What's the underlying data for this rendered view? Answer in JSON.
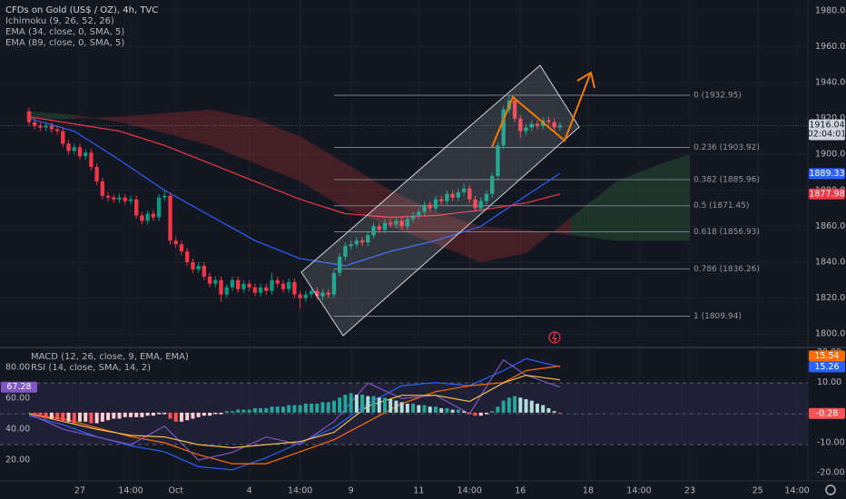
{
  "chart_data": [
    {
      "type": "candlestick",
      "title": "CFDs on Gold (US$ / OZ), 4h, TVC",
      "open": [
        1924,
        1918,
        1916,
        1915,
        1916,
        1914,
        1913,
        1906,
        1902,
        1904,
        1899,
        1901,
        1893,
        1885,
        1877,
        1876,
        1875,
        1876,
        1874,
        1875,
        1866,
        1863,
        1867,
        1865,
        1876,
        1877,
        1852,
        1850,
        1846,
        1840,
        1836,
        1838,
        1832,
        1828,
        1830,
        1822,
        1826,
        1830,
        1825,
        1828,
        1826,
        1823,
        1826,
        1824,
        1830,
        1828,
        1825,
        1829,
        1822,
        1820,
        1822,
        1824,
        1821,
        1823,
        1822,
        1834,
        1843,
        1849,
        1850,
        1852,
        1851,
        1855,
        1860,
        1858,
        1862,
        1861,
        1863,
        1860,
        1864,
        1866,
        1868,
        1872,
        1870,
        1875,
        1874,
        1878,
        1876,
        1879,
        1881,
        1875,
        1870,
        1874,
        1878,
        1888,
        1905,
        1925,
        1930,
        1920,
        1913,
        1915,
        1917,
        1916,
        1919,
        1918,
        1915
      ],
      "high": [
        1926,
        1920,
        1918,
        1918,
        1918,
        1916,
        1915,
        1908,
        1906,
        1906,
        1903,
        1903,
        1895,
        1887,
        1879,
        1878,
        1878,
        1878,
        1877,
        1877,
        1868,
        1869,
        1869,
        1878,
        1880,
        1879,
        1854,
        1852,
        1848,
        1842,
        1840,
        1840,
        1834,
        1832,
        1832,
        1828,
        1832,
        1832,
        1830,
        1830,
        1828,
        1828,
        1828,
        1834,
        1832,
        1830,
        1831,
        1831,
        1824,
        1824,
        1826,
        1826,
        1825,
        1825,
        1836,
        1845,
        1851,
        1852,
        1854,
        1854,
        1857,
        1862,
        1862,
        1864,
        1864,
        1865,
        1865,
        1866,
        1868,
        1870,
        1874,
        1874,
        1877,
        1877,
        1880,
        1880,
        1881,
        1884,
        1883,
        1877,
        1876,
        1880,
        1890,
        1907,
        1927,
        1933,
        1932,
        1922,
        1917,
        1919,
        1919,
        1921,
        1921,
        1920,
        1918
      ],
      "low": [
        1916,
        1914,
        1913,
        1913,
        1912,
        1911,
        1904,
        1900,
        1900,
        1897,
        1897,
        1891,
        1883,
        1875,
        1874,
        1873,
        1873,
        1872,
        1872,
        1864,
        1861,
        1861,
        1863,
        1863,
        1874,
        1850,
        1848,
        1844,
        1838,
        1834,
        1834,
        1830,
        1826,
        1826,
        1818,
        1820,
        1824,
        1823,
        1823,
        1824,
        1821,
        1821,
        1822,
        1822,
        1826,
        1823,
        1823,
        1820,
        1814,
        1818,
        1820,
        1819,
        1819,
        1820,
        1820,
        1832,
        1841,
        1847,
        1848,
        1849,
        1849,
        1853,
        1856,
        1856,
        1859,
        1859,
        1858,
        1858,
        1862,
        1864,
        1866,
        1868,
        1868,
        1872,
        1872,
        1874,
        1874,
        1877,
        1873,
        1868,
        1868,
        1872,
        1876,
        1886,
        1903,
        1923,
        1918,
        1909,
        1911,
        1913,
        1914,
        1914,
        1916,
        1913,
        1913
      ],
      "close": [
        1918,
        1916,
        1915,
        1916,
        1914,
        1913,
        1906,
        1902,
        1904,
        1899,
        1901,
        1893,
        1885,
        1877,
        1876,
        1875,
        1876,
        1874,
        1875,
        1866,
        1863,
        1867,
        1865,
        1876,
        1877,
        1852,
        1850,
        1846,
        1840,
        1836,
        1838,
        1832,
        1828,
        1830,
        1822,
        1826,
        1830,
        1825,
        1828,
        1826,
        1823,
        1826,
        1824,
        1830,
        1828,
        1825,
        1829,
        1822,
        1820,
        1822,
        1824,
        1821,
        1823,
        1822,
        1834,
        1843,
        1849,
        1850,
        1852,
        1851,
        1855,
        1860,
        1858,
        1862,
        1861,
        1863,
        1860,
        1864,
        1866,
        1868,
        1872,
        1870,
        1875,
        1874,
        1878,
        1876,
        1879,
        1881,
        1875,
        1870,
        1874,
        1878,
        1888,
        1905,
        1925,
        1930,
        1920,
        1913,
        1915,
        1917,
        1916,
        1919,
        1918,
        1915,
        1916.04
      ],
      "up_color": "#089981",
      "down_color": "#f23645",
      "last_countdown": "02:04:01",
      "xlim": [
        -5.14,
        137.9
      ],
      "xticks": [
        {
          "value": 9,
          "label": "27"
        },
        {
          "value": 18,
          "label": "14:00"
        },
        {
          "value": 26,
          "label": "Oct"
        },
        {
          "value": 39,
          "label": "4"
        },
        {
          "value": 48,
          "label": "14:00"
        },
        {
          "value": 57,
          "label": "9"
        },
        {
          "value": 69,
          "label": "11"
        },
        {
          "value": 78,
          "label": "14:00"
        },
        {
          "value": 87,
          "label": "16"
        },
        {
          "value": 99,
          "label": "18"
        },
        {
          "value": 108,
          "label": "14:00"
        },
        {
          "value": 117,
          "label": "23"
        },
        {
          "value": 129,
          "label": "25"
        },
        {
          "value": 136,
          "label": "14:00"
        }
      ],
      "ylim": [
        1793,
        1986
      ],
      "yticks": [
        {
          "value": 1980,
          "label": "1980.00"
        },
        {
          "value": 1960,
          "label": "1960.00"
        },
        {
          "value": 1940,
          "label": "1940.00"
        },
        {
          "value": 1920,
          "label": "1920.00"
        },
        {
          "value": 1900,
          "label": "1900.00"
        },
        {
          "value": 1880,
          "label": "1880.00"
        },
        {
          "value": 1860,
          "label": "1860.00"
        },
        {
          "value": 1840,
          "label": "1840.00"
        },
        {
          "value": 1820,
          "label": "1820.00"
        },
        {
          "value": 1800,
          "label": "1800.00"
        }
      ],
      "grid": true,
      "cloud": {
        "name": "Ichimoku (9, 26, 52, 26)",
        "x": [
          0,
          8,
          16,
          24,
          32,
          40,
          48,
          56,
          64,
          72,
          80,
          88,
          96,
          104,
          112,
          117
        ],
        "span_a": [
          1924,
          1922,
          1918,
          1912,
          1905,
          1895,
          1885,
          1870,
          1860,
          1850,
          1840,
          1845,
          1865,
          1885,
          1895,
          1900
        ],
        "span_b": [
          1920,
          1920,
          1921,
          1923,
          1925,
          1920,
          1910,
          1895,
          1880,
          1868,
          1860,
          1858,
          1855,
          1852,
          1852,
          1852
        ],
        "colors": [
          "rgba(67,160,71,0.22)",
          "rgba(244,67,54,0.22)"
        ]
      },
      "series": [
        {
          "name": "EMA (34, close, 0, SMA, 5)",
          "color": "#2962ff",
          "x": [
            0,
            8,
            16,
            24,
            32,
            40,
            48,
            56,
            64,
            72,
            80,
            88,
            94
          ],
          "values": [
            1920,
            1913,
            1897,
            1880,
            1866,
            1852,
            1842,
            1838,
            1846,
            1852,
            1860,
            1877,
            1889.33
          ]
        },
        {
          "name": "EMA (89, close, 0, SMA, 5)",
          "color": "#f23645",
          "x": [
            0,
            8,
            16,
            24,
            32,
            40,
            48,
            56,
            64,
            72,
            80,
            88,
            94
          ],
          "values": [
            1921,
            1917,
            1913,
            1905,
            1895,
            1885,
            1875,
            1867,
            1865,
            1866,
            1869,
            1873,
            1877.98
          ]
        }
      ],
      "fibonacci": {
        "color": "#787b86",
        "levels": [
          {
            "value": 1932.95,
            "label": "0 (1932.95)"
          },
          {
            "value": 1903.92,
            "label": "0.236 (1903.92)"
          },
          {
            "value": 1885.96,
            "label": "0.382 (1885.96)"
          },
          {
            "value": 1871.45,
            "label": "0.5 (1871.45)"
          },
          {
            "value": 1856.93,
            "label": "0.618 (1856.93)"
          },
          {
            "value": 1836.26,
            "label": "0.786 (1836.26)"
          },
          {
            "value": 1809.94,
            "label": "1 (1809.94)"
          }
        ]
      }
    },
    {
      "type": "oscillator",
      "ylim": [
        -22.7,
        21.4
      ],
      "yticks": [
        {
          "value": 20,
          "label": "20.00"
        },
        {
          "value": 10,
          "label": "10.00"
        },
        {
          "value": -10,
          "label": "-10.00"
        },
        {
          "value": -20,
          "label": "-20.00"
        }
      ],
      "y2lim": [
        6.5,
        92.4
      ],
      "y2ticks": [
        {
          "value": 80,
          "label": "80.00"
        },
        {
          "value": 60,
          "label": "60.00"
        },
        {
          "value": 40,
          "label": "40.00"
        },
        {
          "value": 20,
          "label": "20.00"
        }
      ],
      "bands": {
        "values": [
          70,
          50,
          30
        ],
        "fill": "rgba(126,87,194,0.12)"
      },
      "histogram": {
        "values": [
          0,
          -1,
          -1.5,
          -2,
          -2,
          -2.5,
          -3,
          -3,
          -3.5,
          -3,
          -3,
          -3.5,
          -3.5,
          -3,
          -2.5,
          -2,
          -2,
          -1.5,
          -1.5,
          -1.5,
          -1.5,
          -1,
          -1,
          -0.5,
          -0.5,
          -2,
          -3,
          -3,
          -2.5,
          -2,
          -1.5,
          -1,
          -1,
          -0.5,
          -0.5,
          0.5,
          0.5,
          1,
          1,
          1,
          1.5,
          1.5,
          1.5,
          2,
          2,
          2,
          2.5,
          2.5,
          2.5,
          3,
          3,
          3,
          3.5,
          3.5,
          4,
          5,
          6,
          6.5,
          6,
          6,
          5.5,
          5.5,
          5,
          5,
          4.5,
          4,
          3.5,
          3,
          3,
          2.5,
          2.5,
          2,
          2,
          1.5,
          1.5,
          1,
          1,
          0.5,
          -0.5,
          -1,
          -1,
          -0.5,
          0.5,
          2,
          4,
          5,
          5.5,
          5,
          4.5,
          4,
          3,
          2.5,
          1.5,
          0.5,
          -0.28
        ],
        "colors": [
          "#26a69a",
          "#b2dfdb",
          "#ff5252",
          "#ffcdd2"
        ]
      },
      "series": [
        {
          "name": "MACD (12, 26, close, 9, EMA, EMA)",
          "color": "#2962ff",
          "x": [
            0,
            6,
            12,
            18,
            24,
            30,
            36,
            42,
            48,
            54,
            60,
            66,
            72,
            78,
            84,
            88,
            94
          ],
          "values": [
            -1,
            -4,
            -8,
            -11,
            -13,
            -18,
            -19,
            -15,
            -10,
            -5,
            3,
            9,
            10,
            9,
            14,
            18,
            15.26
          ]
        },
        {
          "color": "#ff6d00",
          "x": [
            0,
            6,
            12,
            18,
            24,
            30,
            36,
            42,
            48,
            54,
            60,
            66,
            72,
            78,
            84,
            88,
            94
          ],
          "values": [
            -0.5,
            -2,
            -5,
            -8,
            -10,
            -14,
            -17,
            -17,
            -13,
            -9,
            -3,
            3,
            7,
            9,
            10,
            14,
            15.54
          ]
        },
        {
          "name": "RSI (14, close, SMA, 14, 2)",
          "color": "#7e57c2",
          "axis": "y2",
          "x": [
            0,
            6,
            12,
            18,
            24,
            30,
            36,
            42,
            48,
            54,
            60,
            66,
            72,
            78,
            84,
            88,
            94
          ],
          "values": [
            50,
            40,
            35,
            30,
            42,
            20,
            25,
            35,
            30,
            45,
            70,
            60,
            62,
            50,
            85,
            75,
            67.28
          ]
        },
        {
          "color": "#f5c04a",
          "axis": "y2",
          "x": [
            0,
            6,
            12,
            18,
            24,
            30,
            36,
            42,
            48,
            54,
            60,
            66,
            72,
            78,
            84,
            88,
            94
          ],
          "values": [
            50,
            45,
            40,
            36,
            35,
            30,
            28,
            30,
            32,
            38,
            55,
            62,
            62,
            58,
            70,
            75,
            72
          ]
        }
      ]
    }
  ]
}
